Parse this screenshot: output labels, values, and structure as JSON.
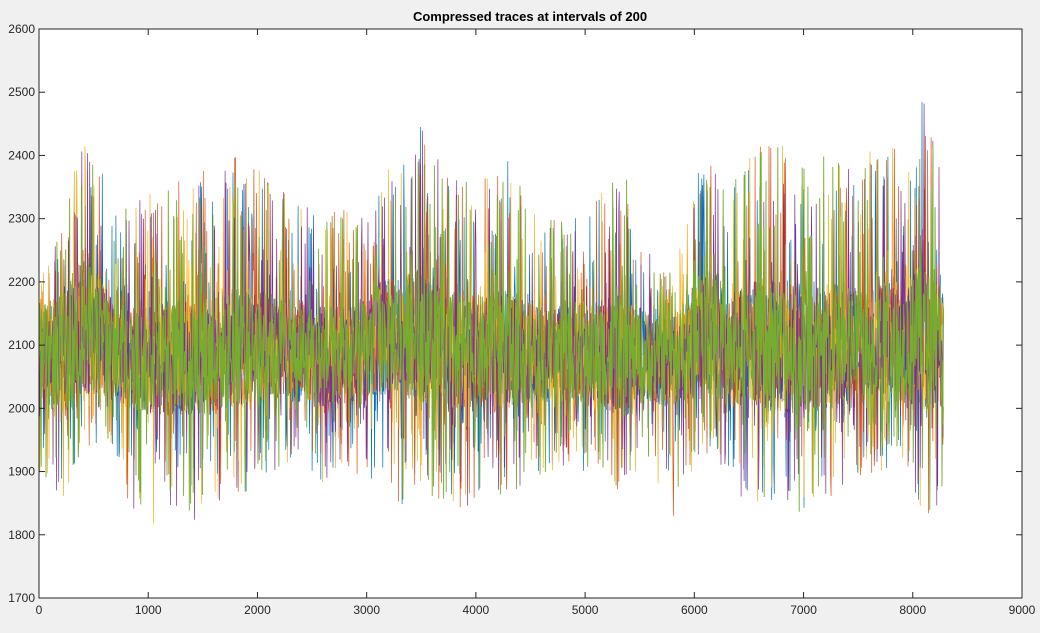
{
  "figure": {
    "background": "#f0f0f0",
    "axes_background": "#ffffff"
  },
  "chart_data": {
    "type": "line",
    "title": "Compressed traces at intervals of 200",
    "xlabel": "",
    "ylabel": "",
    "xlim": [
      0,
      9000
    ],
    "ylim": [
      1700,
      2600
    ],
    "xticks": [
      "0",
      "1000",
      "2000",
      "3000",
      "4000",
      "5000",
      "6000",
      "7000",
      "8000",
      "9000"
    ],
    "yticks": [
      "1700",
      "1800",
      "1900",
      "2000",
      "2100",
      "2200",
      "2300",
      "2400",
      "2500",
      "2600"
    ],
    "grid": false,
    "x_extent": [
      0,
      8280
    ],
    "series_colors": [
      "#0072bd",
      "#d95319",
      "#edb120",
      "#7e2f8e",
      "#77ac30"
    ],
    "envelope": {
      "x": [
        0,
        200,
        400,
        500,
        700,
        800,
        1000,
        1200,
        1400,
        1600,
        1800,
        2000,
        2200,
        2400,
        2600,
        2800,
        3000,
        3100,
        3300,
        3500,
        3700,
        3900,
        4100,
        4300,
        4500,
        4700,
        4900,
        5100,
        5300,
        5400,
        5600,
        5800,
        6000,
        6200,
        6300,
        6500,
        6700,
        6900,
        7100,
        7300,
        7500,
        7700,
        7900,
        8100,
        8200,
        8280
      ],
      "upper": [
        2200,
        2280,
        2440,
        2400,
        2330,
        2320,
        2340,
        2360,
        2370,
        2380,
        2400,
        2380,
        2360,
        2330,
        2300,
        2320,
        2300,
        2380,
        2400,
        2450,
        2380,
        2360,
        2370,
        2400,
        2320,
        2300,
        2320,
        2340,
        2380,
        2360,
        2250,
        2220,
        2380,
        2420,
        2340,
        2400,
        2440,
        2420,
        2400,
        2420,
        2370,
        2440,
        2400,
        2500,
        2460,
        2330
      ],
      "lower": [
        1900,
        1850,
        1930,
        1940,
        1930,
        1850,
        1810,
        1820,
        1810,
        1820,
        1850,
        1880,
        1900,
        1920,
        1880,
        1890,
        1880,
        1900,
        1850,
        1840,
        1850,
        1840,
        1860,
        1860,
        1890,
        1900,
        1900,
        1880,
        1850,
        1900,
        1880,
        1820,
        1910,
        1930,
        1880,
        1850,
        1850,
        1830,
        1840,
        1860,
        1880,
        1900,
        1920,
        1820,
        1840,
        1860
      ],
      "core_low": [
        1990,
        2000,
        2020,
        2020,
        2010,
        2000,
        1990,
        1990,
        1990,
        1990,
        2000,
        2010,
        2010,
        2010,
        2000,
        2000,
        2000,
        2020,
        2020,
        2010,
        2000,
        2000,
        2000,
        2000,
        2010,
        2010,
        2010,
        2000,
        1990,
        2000,
        2010,
        2000,
        2020,
        2020,
        2000,
        2000,
        1990,
        1990,
        1990,
        2000,
        2000,
        2010,
        2010,
        2000,
        2000,
        2000
      ],
      "core_high": [
        2160,
        2180,
        2250,
        2230,
        2170,
        2160,
        2160,
        2170,
        2170,
        2180,
        2190,
        2190,
        2180,
        2170,
        2160,
        2170,
        2170,
        2200,
        2210,
        2220,
        2190,
        2180,
        2180,
        2190,
        2170,
        2160,
        2170,
        2170,
        2180,
        2170,
        2150,
        2140,
        2200,
        2220,
        2180,
        2200,
        2210,
        2200,
        2190,
        2200,
        2190,
        2200,
        2200,
        2230,
        2200,
        2180
      ]
    }
  }
}
